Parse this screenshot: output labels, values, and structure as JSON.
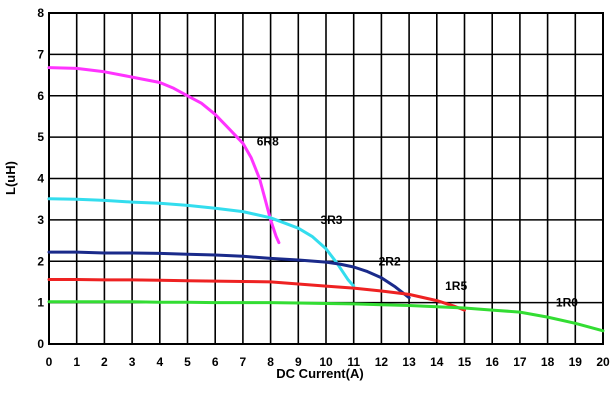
{
  "chart_data": {
    "type": "line",
    "title": "",
    "xlabel": "DC Current(A)",
    "ylabel": "L(uH)",
    "xlim": [
      0,
      20
    ],
    "ylim": [
      0,
      8
    ],
    "x_ticks": [
      0,
      1,
      2,
      3,
      4,
      5,
      6,
      7,
      8,
      9,
      10,
      11,
      12,
      13,
      14,
      15,
      16,
      17,
      18,
      19,
      20
    ],
    "y_ticks": [
      0,
      1,
      2,
      3,
      4,
      5,
      6,
      7,
      8
    ],
    "grid": true,
    "legend": "none",
    "series": [
      {
        "name": "6R8",
        "color": "#ff33ff",
        "points": [
          [
            0,
            6.68
          ],
          [
            1,
            6.66
          ],
          [
            2,
            6.58
          ],
          [
            3,
            6.45
          ],
          [
            4,
            6.32
          ],
          [
            4.5,
            6.18
          ],
          [
            5,
            6.0
          ],
          [
            5.5,
            5.82
          ],
          [
            6,
            5.55
          ],
          [
            6.5,
            5.2
          ],
          [
            7,
            4.85
          ],
          [
            7.3,
            4.5
          ],
          [
            7.6,
            4.0
          ],
          [
            7.8,
            3.5
          ],
          [
            8.0,
            3.0
          ],
          [
            8.2,
            2.6
          ],
          [
            8.3,
            2.45
          ]
        ],
        "label_at": [
          7.5,
          4.9
        ]
      },
      {
        "name": "3R3",
        "color": "#33ddee",
        "points": [
          [
            0,
            3.51
          ],
          [
            1,
            3.5
          ],
          [
            2,
            3.47
          ],
          [
            3,
            3.43
          ],
          [
            4,
            3.4
          ],
          [
            5,
            3.35
          ],
          [
            6,
            3.28
          ],
          [
            7,
            3.2
          ],
          [
            8,
            3.05
          ],
          [
            9,
            2.8
          ],
          [
            9.5,
            2.6
          ],
          [
            10,
            2.3
          ],
          [
            10.4,
            1.95
          ],
          [
            10.8,
            1.55
          ],
          [
            11.0,
            1.4
          ]
        ],
        "label_at": [
          9.8,
          3.0
        ]
      },
      {
        "name": "2R2",
        "color": "#1a2a8a",
        "points": [
          [
            0,
            2.22
          ],
          [
            1,
            2.22
          ],
          [
            2,
            2.2
          ],
          [
            3,
            2.2
          ],
          [
            4,
            2.19
          ],
          [
            5,
            2.17
          ],
          [
            6,
            2.15
          ],
          [
            7,
            2.12
          ],
          [
            8,
            2.07
          ],
          [
            9,
            2.03
          ],
          [
            10,
            1.98
          ],
          [
            10.5,
            1.93
          ],
          [
            11,
            1.86
          ],
          [
            11.5,
            1.75
          ],
          [
            12,
            1.6
          ],
          [
            12.5,
            1.38
          ],
          [
            13,
            1.12
          ]
        ],
        "label_at": [
          11.9,
          2.0
        ]
      },
      {
        "name": "1R5",
        "color": "#ee2222",
        "points": [
          [
            0,
            1.56
          ],
          [
            1,
            1.56
          ],
          [
            2,
            1.55
          ],
          [
            3,
            1.55
          ],
          [
            4,
            1.54
          ],
          [
            5,
            1.53
          ],
          [
            6,
            1.52
          ],
          [
            7,
            1.51
          ],
          [
            8,
            1.5
          ],
          [
            9,
            1.45
          ],
          [
            10,
            1.4
          ],
          [
            11,
            1.35
          ],
          [
            12,
            1.28
          ],
          [
            13,
            1.2
          ],
          [
            14,
            1.05
          ],
          [
            14.6,
            0.92
          ],
          [
            15,
            0.82
          ]
        ],
        "label_at": [
          14.3,
          1.4
        ]
      },
      {
        "name": "1R0",
        "color": "#33dd33",
        "points": [
          [
            0,
            1.02
          ],
          [
            1,
            1.02
          ],
          [
            2,
            1.02
          ],
          [
            3,
            1.02
          ],
          [
            4,
            1.01
          ],
          [
            5,
            1.01
          ],
          [
            6,
            1.0
          ],
          [
            7,
            1.0
          ],
          [
            8,
            1.0
          ],
          [
            9,
            0.99
          ],
          [
            10,
            0.98
          ],
          [
            11,
            0.97
          ],
          [
            12,
            0.95
          ],
          [
            13,
            0.93
          ],
          [
            14,
            0.9
          ],
          [
            15,
            0.87
          ],
          [
            16,
            0.82
          ],
          [
            17,
            0.77
          ],
          [
            18,
            0.65
          ],
          [
            19,
            0.5
          ],
          [
            20,
            0.32
          ]
        ],
        "label_at": [
          18.3,
          1.0
        ]
      }
    ]
  }
}
